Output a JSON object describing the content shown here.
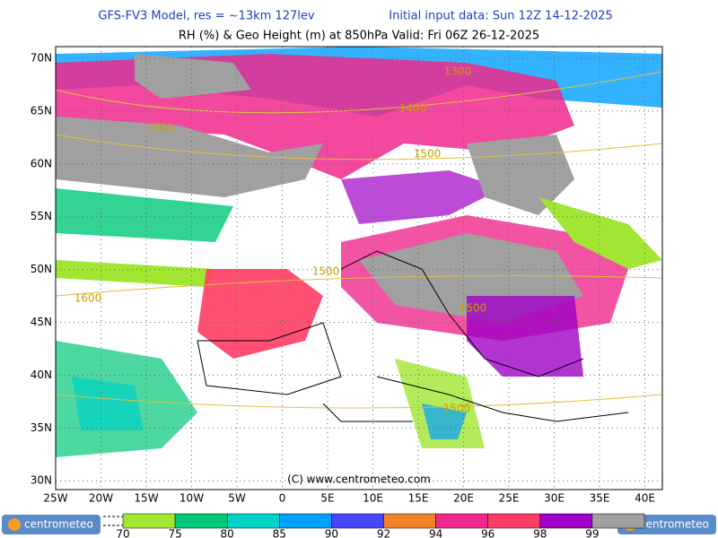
{
  "header": {
    "model": "GFS-FV3 Model, res = ~13km 127lev",
    "init": "Initial input data: Sun 12Z 14-12-2025",
    "subtitle": "RH (%) & Geo Height (m) at 850hPa  Valid: Fri 06Z 26-12-2025"
  },
  "map": {
    "lon_labels": [
      "25W",
      "20W",
      "15W",
      "10W",
      "5W",
      "0",
      "5E",
      "10E",
      "15E",
      "20E",
      "25E",
      "30E",
      "35E",
      "40E"
    ],
    "lat_labels": [
      "70N",
      "65N",
      "60N",
      "55N",
      "50N",
      "45N",
      "40N",
      "35N",
      "30N"
    ],
    "contour_labels": [
      1300,
      1400,
      1500,
      1500,
      1500,
      1600,
      1500,
      1500
    ],
    "copyright": "(C) www.centrometeo.com"
  },
  "legend": {
    "ticks": [
      70,
      75,
      80,
      85,
      90,
      92,
      94,
      96,
      98,
      99
    ],
    "colors": [
      "#a0e632",
      "#00c878",
      "#00d2c8",
      "#00a0ff",
      "#4646ff",
      "#f08228",
      "#f0288c",
      "#ff3c64",
      "#a000c8",
      "#a0a0a0"
    ]
  },
  "logos": [
    "centrometeo",
    "centrometeo"
  ]
}
